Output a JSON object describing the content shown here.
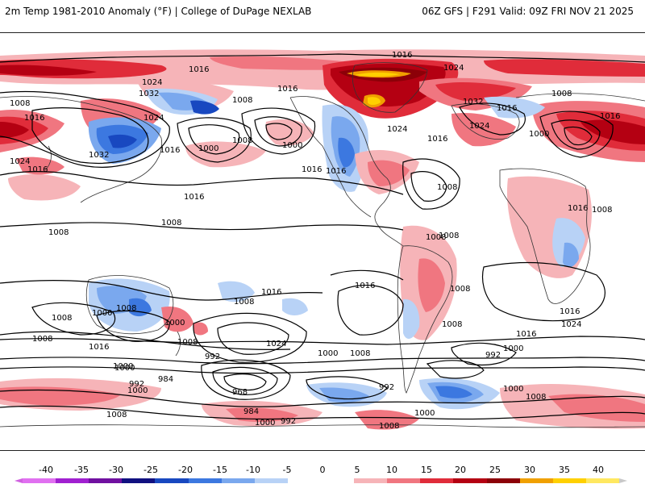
{
  "header": {
    "left_title": "2m Temp 1981-2010 Anomaly (°F) | College of DuPage NEXLAB",
    "right_title": "06Z GFS | F291 Valid: 09Z FRI NOV 21 2025"
  },
  "colorbar": {
    "labels": [
      "-40",
      "-35",
      "-30",
      "-25",
      "-20",
      "-15",
      "-10",
      "-5",
      "0",
      "5",
      "10",
      "15",
      "20",
      "25",
      "30",
      "35",
      "40"
    ],
    "colors": [
      "#e070f0",
      "#a020d0",
      "#7010a0",
      "#101080",
      "#1848c0",
      "#3c78e0",
      "#7aa8ee",
      "#b8d2f6",
      "#ffffff",
      "#ffffff",
      "#f6b4b8",
      "#f07680",
      "#e02c3a",
      "#b40012",
      "#8c0008",
      "#f0a000",
      "#ffd000",
      "#ffe860"
    ]
  },
  "map": {
    "colors": {
      "warm_light": "#f6b4b8",
      "warm_mid": "#f07680",
      "warm_strong": "#e02c3a",
      "warm_deep": "#b40012",
      "warm_extreme": "#8c0008",
      "hot_orange": "#f0a000",
      "hot_yellow": "#ffd000",
      "cold_light": "#b8d2f6",
      "cold_mid": "#7aa8ee",
      "cold_strong": "#3c78e0",
      "cold_deep": "#1848c0",
      "contour": "#000000",
      "coast": "#333333"
    },
    "isobar_labels": [
      {
        "text": "1016"
      },
      {
        "text": "1016"
      },
      {
        "text": "1024"
      },
      {
        "text": "1008"
      },
      {
        "text": "1032"
      },
      {
        "text": "1024"
      },
      {
        "text": "1016"
      },
      {
        "text": "1032"
      },
      {
        "text": "1024"
      },
      {
        "text": "1016"
      },
      {
        "text": "1008"
      },
      {
        "text": "1016"
      },
      {
        "text": "1000"
      },
      {
        "text": "1008"
      },
      {
        "text": "1000"
      },
      {
        "text": "1016"
      },
      {
        "text": "1016"
      },
      {
        "text": "1016"
      },
      {
        "text": "1024"
      },
      {
        "text": "1024"
      },
      {
        "text": "1016"
      },
      {
        "text": "1032"
      },
      {
        "text": "1016"
      },
      {
        "text": "1024"
      },
      {
        "text": "1008"
      },
      {
        "text": "1000"
      },
      {
        "text": "1016"
      },
      {
        "text": "1008"
      },
      {
        "text": "1016"
      },
      {
        "text": "1008"
      },
      {
        "text": "1008"
      },
      {
        "text": "1008"
      },
      {
        "text": "1008"
      },
      {
        "text": "1008"
      },
      {
        "text": "1000"
      },
      {
        "text": "1008"
      },
      {
        "text": "1016"
      },
      {
        "text": "1000"
      },
      {
        "text": "1016"
      },
      {
        "text": "1008"
      },
      {
        "text": "1016"
      },
      {
        "text": "1016"
      },
      {
        "text": "1008"
      },
      {
        "text": "1024"
      },
      {
        "text": "1016"
      },
      {
        "text": "1024"
      },
      {
        "text": "1008"
      },
      {
        "text": "1016"
      },
      {
        "text": "1008"
      },
      {
        "text": "1008"
      },
      {
        "text": "992"
      },
      {
        "text": "1000"
      },
      {
        "text": "1008"
      },
      {
        "text": "1000"
      },
      {
        "text": "992"
      },
      {
        "text": "1000"
      },
      {
        "text": "1000"
      },
      {
        "text": "992"
      },
      {
        "text": "984"
      },
      {
        "text": "968"
      },
      {
        "text": "1000"
      },
      {
        "text": "992"
      },
      {
        "text": "1008"
      },
      {
        "text": "984"
      },
      {
        "text": "1000"
      },
      {
        "text": "992"
      },
      {
        "text": "1000"
      },
      {
        "text": "1008"
      },
      {
        "text": "1008"
      },
      {
        "text": "1000"
      },
      {
        "text": "1008"
      }
    ]
  }
}
